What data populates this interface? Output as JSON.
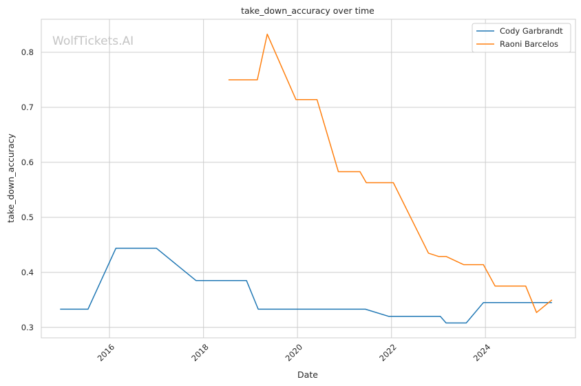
{
  "chart_data": {
    "type": "line",
    "title": "take_down_accuracy over time",
    "xlabel": "Date",
    "ylabel": "take_down_accuracy",
    "watermark": "WolfTickets.AI",
    "x_ticks": [
      "2016",
      "2018",
      "2020",
      "2022",
      "2024"
    ],
    "y_ticks": [
      "0.3",
      "0.4",
      "0.5",
      "0.6",
      "0.7",
      "0.8"
    ],
    "xlim": [
      "2014-07-20",
      "2025-12-01"
    ],
    "ylim": [
      0.281,
      0.86
    ],
    "grid": true,
    "legend_position": "top-right",
    "series": [
      {
        "name": "Cody Garbrandt",
        "color": "#1f77b4",
        "points": [
          [
            "2014-12-13",
            0.333
          ],
          [
            "2015-07-18",
            0.333
          ],
          [
            "2016-02-20",
            0.444
          ],
          [
            "2016-12-30",
            0.444
          ],
          [
            "2017-11-04",
            0.385
          ],
          [
            "2018-12-01",
            0.385
          ],
          [
            "2019-03-02",
            0.333
          ],
          [
            "2021-06-12",
            0.333
          ],
          [
            "2021-12-11",
            0.32
          ],
          [
            "2023-01-15",
            0.32
          ],
          [
            "2023-03-01",
            0.308
          ],
          [
            "2023-08-05",
            0.308
          ],
          [
            "2023-12-16",
            0.345
          ],
          [
            "2025-06-01",
            0.345
          ]
        ]
      },
      {
        "name": "Raoni Barcelos",
        "color": "#ff7f0e",
        "points": [
          [
            "2018-07-14",
            0.75
          ],
          [
            "2019-02-23",
            0.75
          ],
          [
            "2019-05-11",
            0.833
          ],
          [
            "2019-12-20",
            0.714
          ],
          [
            "2020-06-01",
            0.714
          ],
          [
            "2020-11-14",
            0.583
          ],
          [
            "2021-05-01",
            0.583
          ],
          [
            "2021-06-19",
            0.563
          ],
          [
            "2022-01-15",
            0.563
          ],
          [
            "2022-10-15",
            0.435
          ],
          [
            "2023-01-01",
            0.429
          ],
          [
            "2023-03-01",
            0.429
          ],
          [
            "2023-07-15",
            0.414
          ],
          [
            "2023-12-16",
            0.414
          ],
          [
            "2024-03-16",
            0.375
          ],
          [
            "2024-11-09",
            0.375
          ],
          [
            "2025-02-01",
            0.327
          ],
          [
            "2025-06-01",
            0.35
          ]
        ]
      }
    ]
  }
}
